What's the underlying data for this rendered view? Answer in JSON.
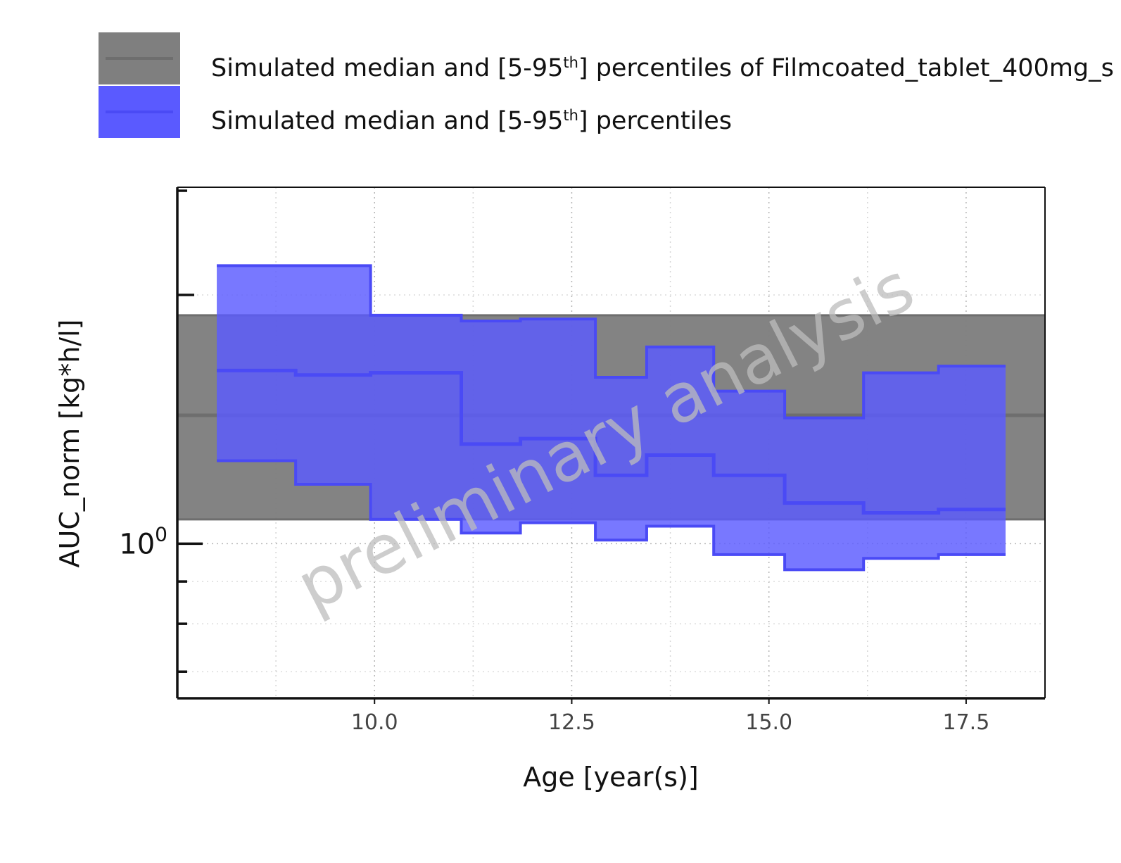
{
  "chart_data": {
    "type": "area",
    "x_unit_label": "Age [year(s)]",
    "xlabel": "Age [year(s)]",
    "ylabel": "AUC_norm [kg*h/l]",
    "y_scale": "log",
    "xlim": [
      7.5,
      18.5
    ],
    "ylim": [
      0.65,
      2.7
    ],
    "x_ticks": [
      10.0,
      12.5,
      15.0,
      17.5
    ],
    "x_tick_labels": [
      "10.0",
      "12.5",
      "15.0",
      "17.5"
    ],
    "y_major_ticks": [
      {
        "value": 1.0,
        "base": "10",
        "exp": "0"
      }
    ],
    "grid": true,
    "legend_placement": "top-left",
    "watermark": "preliminary analysis",
    "series": [
      {
        "name": "Simulated median and [5-95th] percentiles of Filmcoated_tablet_400mg_s",
        "legend_main": "Simulated median and [5-95",
        "legend_sup": "th",
        "legend_tail": "] percentiles of Filmcoated_tablet_400mg_s",
        "kind": "reference-band",
        "fill": "#7f7f7f",
        "line": "#6e6e6e",
        "median": 1.43,
        "p5": 1.07,
        "p95": 1.89
      },
      {
        "name": "Simulated median and [5-95th] percentiles",
        "legend_main": "Simulated median and [5-95",
        "legend_sup": "th",
        "legend_tail": "] percentiles",
        "kind": "age-binned-step",
        "fill": "#5a5aff",
        "line": "#4a4af5",
        "bins": [
          {
            "x0": 8.0,
            "x1": 9.0,
            "median": 1.62,
            "p5": 1.26,
            "p95": 2.17
          },
          {
            "x0": 9.0,
            "x1": 9.95,
            "median": 1.6,
            "p5": 1.18,
            "p95": 2.17
          },
          {
            "x0": 9.95,
            "x1": 11.1,
            "median": 1.61,
            "p5": 1.07,
            "p95": 1.89
          },
          {
            "x0": 11.1,
            "x1": 11.85,
            "median": 1.32,
            "p5": 1.03,
            "p95": 1.86
          },
          {
            "x0": 11.85,
            "x1": 12.8,
            "median": 1.34,
            "p5": 1.06,
            "p95": 1.87
          },
          {
            "x0": 12.8,
            "x1": 13.45,
            "median": 1.21,
            "p5": 1.01,
            "p95": 1.59
          },
          {
            "x0": 13.45,
            "x1": 14.3,
            "median": 1.28,
            "p5": 1.05,
            "p95": 1.73
          },
          {
            "x0": 14.3,
            "x1": 15.2,
            "median": 1.21,
            "p5": 0.97,
            "p95": 1.53
          },
          {
            "x0": 15.2,
            "x1": 16.2,
            "median": 1.12,
            "p5": 0.93,
            "p95": 1.42
          },
          {
            "x0": 16.2,
            "x1": 17.15,
            "median": 1.09,
            "p5": 0.96,
            "p95": 1.61
          },
          {
            "x0": 17.15,
            "x1": 18.0,
            "median": 1.1,
            "p5": 0.97,
            "p95": 1.64
          }
        ]
      }
    ]
  }
}
